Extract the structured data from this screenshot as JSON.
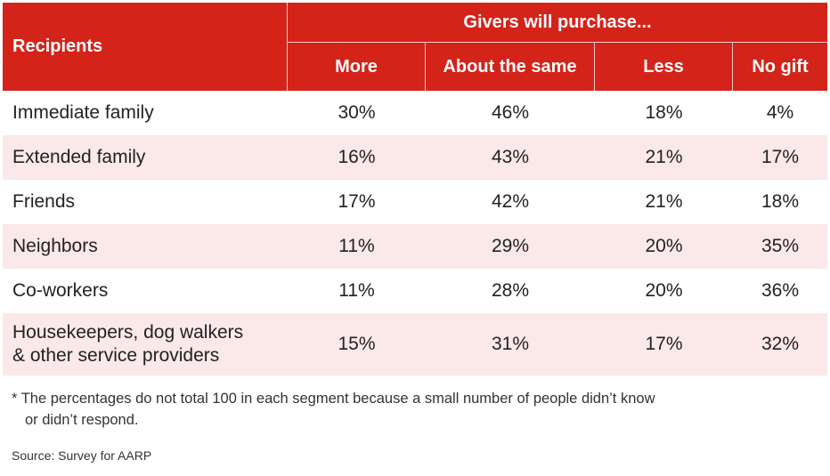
{
  "chart_data": {
    "type": "table",
    "row_header": "Recipients",
    "column_group_header": "Givers will purchase...",
    "columns": [
      "More",
      "About the same",
      "Less",
      "No gift"
    ],
    "rows": [
      {
        "label": "Immediate family",
        "values": [
          "30%",
          "46%",
          "18%",
          "4%"
        ]
      },
      {
        "label": "Extended family",
        "values": [
          "16%",
          "43%",
          "21%",
          "17%"
        ]
      },
      {
        "label": "Friends",
        "values": [
          "17%",
          "42%",
          "21%",
          "18%"
        ]
      },
      {
        "label": "Neighbors",
        "values": [
          "11%",
          "29%",
          "20%",
          "35%"
        ]
      },
      {
        "label": "Co-workers",
        "values": [
          "11%",
          "28%",
          "20%",
          "36%"
        ]
      },
      {
        "label_lines": [
          "Housekeepers, dog walkers",
          "& other service providers"
        ],
        "values": [
          "15%",
          "31%",
          "17%",
          "32%"
        ]
      }
    ],
    "footnote": [
      "* The percentages do not total 100 in each segment because a small number of people didn’t know",
      "or didn’t respond."
    ],
    "source": "Source:  Survey for AARP"
  },
  "colors": {
    "header_red": "#d42319",
    "alt_row_pink": "#fbe8e8",
    "header_text": "#ffffff"
  }
}
